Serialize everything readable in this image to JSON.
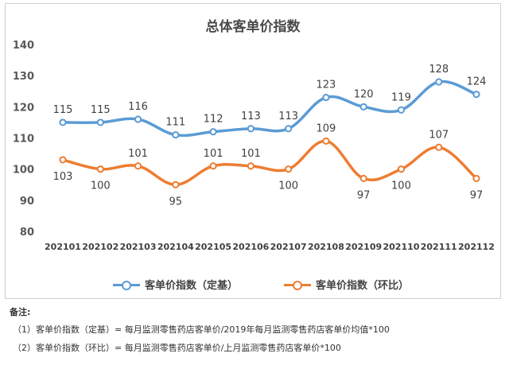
{
  "chart_data": {
    "type": "line",
    "title": "总体客单价指数",
    "categories": [
      "202101",
      "202102",
      "202103",
      "202104",
      "202105",
      "202106",
      "202107",
      "202108",
      "202109",
      "202110",
      "202111",
      "202112"
    ],
    "series": [
      {
        "name": "客单价指数（定基）",
        "color": "#5b9bd5",
        "values": [
          115,
          115,
          116,
          111,
          112,
          113,
          113,
          123,
          120,
          119,
          128,
          124
        ]
      },
      {
        "name": "客单价指数（环比）",
        "color": "#ed7d31",
        "values": [
          103,
          100,
          101,
          95,
          101,
          101,
          100,
          109,
          97,
          100,
          107,
          97
        ]
      }
    ],
    "ylim": [
      80,
      140
    ],
    "yticks": [
      "80",
      "90",
      "100",
      "110",
      "120",
      "130",
      "140"
    ],
    "grid": false,
    "legend_position": "bottom"
  },
  "notes": {
    "heading": "备注:",
    "lines": [
      "（1）客单价指数（定基）= 每月监测零售药店客单价/2019年每月监测零售药店客单价均值*100",
      "（2）客单价指数（环比）= 每月监测零售药店客单价/上月监测零售药店客单价*100"
    ]
  }
}
